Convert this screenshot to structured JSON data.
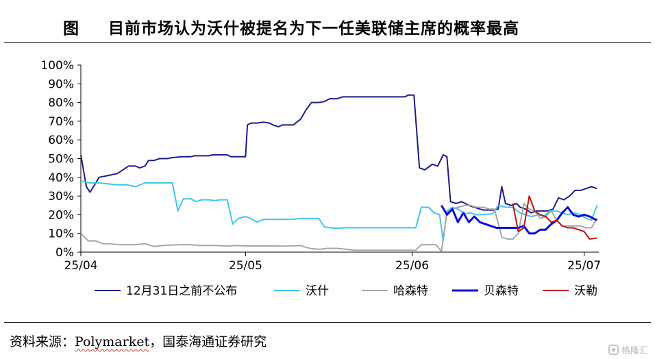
{
  "title": {
    "label": "图",
    "text": "目前市场认为沃什被提名为下一任美联储主席的概率最高"
  },
  "source_prefix": "资料来源：",
  "source_brand": "Polymarket",
  "source_suffix": "，国泰海通证券研究",
  "watermark": {
    "text": "格隆汇",
    "icon": "logo-icon"
  },
  "chart_data": {
    "type": "line",
    "title": "目前市场认为沃什被提名为下一任美联储主席的概率最高",
    "y_unit": "%",
    "ylim": [
      0,
      100
    ],
    "yticks": [
      0,
      10,
      20,
      30,
      40,
      50,
      60,
      70,
      80,
      90,
      100
    ],
    "xlim": [
      0,
      28.3
    ],
    "xticks": [
      {
        "label": "25/04",
        "x": 0
      },
      {
        "label": "25/05",
        "x": 9.0
      },
      {
        "label": "25/06",
        "x": 18.1
      },
      {
        "label": "25/07",
        "x": 27.5
      }
    ],
    "x_note": "x in months-scale units where 0 = 25/04 and tick labels as shown",
    "grid": false,
    "legend_position": "bottom",
    "series": [
      {
        "name": "12月31日之前不公布",
        "color": "#1c1c8c",
        "width": 2,
        "points": [
          [
            0,
            52
          ],
          [
            0.3,
            35
          ],
          [
            0.5,
            32
          ],
          [
            1,
            40
          ],
          [
            1.5,
            41
          ],
          [
            2,
            42
          ],
          [
            2.3,
            44
          ],
          [
            2.6,
            46
          ],
          [
            3,
            46
          ],
          [
            3.2,
            45
          ],
          [
            3.5,
            46
          ],
          [
            3.7,
            49
          ],
          [
            4,
            49
          ],
          [
            4.3,
            50
          ],
          [
            4.7,
            50
          ],
          [
            5,
            50.5
          ],
          [
            5.5,
            51
          ],
          [
            6,
            51
          ],
          [
            6.2,
            51.5
          ],
          [
            6.6,
            51.5
          ],
          [
            7,
            51.5
          ],
          [
            7.2,
            52
          ],
          [
            7.3,
            52
          ],
          [
            7.5,
            52
          ],
          [
            7.8,
            52
          ],
          [
            8,
            52
          ],
          [
            8.2,
            51
          ],
          [
            8.4,
            51
          ],
          [
            8.6,
            51
          ],
          [
            8.8,
            51
          ],
          [
            9.0,
            51
          ],
          [
            9.1,
            68
          ],
          [
            9.3,
            69
          ],
          [
            9.6,
            69
          ],
          [
            10,
            69.5
          ],
          [
            10.3,
            69
          ],
          [
            10.5,
            68
          ],
          [
            10.8,
            67
          ],
          [
            11,
            68
          ],
          [
            11.3,
            68
          ],
          [
            11.6,
            68
          ],
          [
            12,
            71
          ],
          [
            12.3,
            76
          ],
          [
            12.6,
            80
          ],
          [
            13,
            80
          ],
          [
            13.3,
            80.5
          ],
          [
            13.6,
            82
          ],
          [
            14,
            82
          ],
          [
            14.3,
            83
          ],
          [
            14.6,
            83
          ],
          [
            15,
            83
          ],
          [
            15.5,
            83
          ],
          [
            16,
            83
          ],
          [
            16.5,
            83
          ],
          [
            17,
            83
          ],
          [
            17.4,
            83
          ],
          [
            17.7,
            83
          ],
          [
            17.9,
            84
          ],
          [
            18.2,
            84
          ],
          [
            18.5,
            45
          ],
          [
            18.8,
            44
          ],
          [
            19.2,
            47
          ],
          [
            19.5,
            46
          ],
          [
            19.8,
            52
          ],
          [
            20,
            51
          ],
          [
            20.2,
            27
          ],
          [
            20.5,
            26
          ],
          [
            20.8,
            27
          ],
          [
            21,
            26
          ],
          [
            21.2,
            25
          ],
          [
            21.5,
            24
          ],
          [
            21.8,
            23
          ],
          [
            22,
            22.5
          ],
          [
            22.5,
            22.5
          ],
          [
            22.8,
            23
          ],
          [
            23,
            35
          ],
          [
            23.2,
            26
          ],
          [
            23.5,
            25
          ],
          [
            23.8,
            26
          ],
          [
            24,
            24
          ],
          [
            24.3,
            23
          ],
          [
            24.6,
            21
          ],
          [
            24.9,
            22
          ],
          [
            25.2,
            22
          ],
          [
            25.5,
            22
          ],
          [
            25.8,
            23
          ],
          [
            26.1,
            29
          ],
          [
            26.4,
            28
          ],
          [
            26.7,
            30
          ],
          [
            27,
            33
          ],
          [
            27.3,
            33
          ],
          [
            27.6,
            34
          ],
          [
            27.9,
            35
          ],
          [
            28.2,
            34
          ]
        ]
      },
      {
        "name": "沃什",
        "color": "#3ec5ee",
        "width": 2,
        "points": [
          [
            0,
            38
          ],
          [
            0.5,
            37
          ],
          [
            1,
            37
          ],
          [
            1.5,
            36.5
          ],
          [
            2,
            36
          ],
          [
            2.5,
            36
          ],
          [
            3,
            35
          ],
          [
            3.5,
            37
          ],
          [
            4,
            37
          ],
          [
            4.5,
            37
          ],
          [
            5,
            37
          ],
          [
            5.3,
            22
          ],
          [
            5.6,
            28.5
          ],
          [
            6,
            28.5
          ],
          [
            6.3,
            27
          ],
          [
            6.6,
            28
          ],
          [
            7,
            28
          ],
          [
            7.3,
            27.5
          ],
          [
            7.6,
            28
          ],
          [
            8,
            28
          ],
          [
            8.3,
            15
          ],
          [
            8.6,
            18
          ],
          [
            9,
            19
          ],
          [
            9.3,
            18
          ],
          [
            9.6,
            16
          ],
          [
            10,
            17.5
          ],
          [
            10.5,
            17.5
          ],
          [
            11,
            17.5
          ],
          [
            11.5,
            17.5
          ],
          [
            12,
            18
          ],
          [
            12.5,
            18
          ],
          [
            13,
            18
          ],
          [
            13.3,
            13.5
          ],
          [
            13.6,
            13
          ],
          [
            14,
            12.8
          ],
          [
            14.5,
            13
          ],
          [
            15,
            13
          ],
          [
            15.5,
            13
          ],
          [
            16,
            13
          ],
          [
            16.5,
            13
          ],
          [
            17,
            13
          ],
          [
            17.5,
            13
          ],
          [
            18,
            13
          ],
          [
            18.3,
            13
          ],
          [
            18.6,
            24
          ],
          [
            19,
            24
          ],
          [
            19.3,
            21
          ],
          [
            19.6,
            20
          ],
          [
            19.8,
            6
          ],
          [
            20,
            22
          ],
          [
            20.3,
            24
          ],
          [
            20.6,
            23
          ],
          [
            21,
            20.5
          ],
          [
            21.3,
            21
          ],
          [
            21.6,
            20
          ],
          [
            22,
            20
          ],
          [
            22.5,
            20.5
          ],
          [
            22.8,
            25
          ],
          [
            23.2,
            24
          ],
          [
            23.6,
            24
          ],
          [
            24,
            21
          ],
          [
            24.3,
            20
          ],
          [
            24.6,
            19
          ],
          [
            25,
            20
          ],
          [
            25.3,
            19
          ],
          [
            25.6,
            22
          ],
          [
            26,
            22
          ],
          [
            26.3,
            21
          ],
          [
            26.6,
            20
          ],
          [
            27,
            21
          ],
          [
            27.3,
            20
          ],
          [
            27.6,
            18
          ],
          [
            27.9,
            17
          ],
          [
            28.2,
            25
          ]
        ]
      },
      {
        "name": "哈森特",
        "color": "#a6a6a6",
        "width": 2,
        "points": [
          [
            0,
            10
          ],
          [
            0.4,
            6
          ],
          [
            0.8,
            6
          ],
          [
            1.2,
            4.5
          ],
          [
            1.6,
            4.5
          ],
          [
            2,
            4
          ],
          [
            2.5,
            4
          ],
          [
            3,
            4
          ],
          [
            3.5,
            4.5
          ],
          [
            4,
            3
          ],
          [
            4.5,
            3.5
          ],
          [
            5,
            3.8
          ],
          [
            5.5,
            4
          ],
          [
            6,
            4
          ],
          [
            6.5,
            3.5
          ],
          [
            7,
            3.5
          ],
          [
            7.5,
            3.5
          ],
          [
            8,
            3.2
          ],
          [
            8.5,
            3.5
          ],
          [
            9,
            3.3
          ],
          [
            9.5,
            3.3
          ],
          [
            10,
            3.3
          ],
          [
            10.5,
            3.3
          ],
          [
            11,
            3.2
          ],
          [
            11.5,
            3.3
          ],
          [
            12,
            3.5
          ],
          [
            12.5,
            2
          ],
          [
            13,
            1.5
          ],
          [
            13.5,
            2
          ],
          [
            14,
            2
          ],
          [
            14.5,
            1.5
          ],
          [
            15,
            1
          ],
          [
            15.5,
            1
          ],
          [
            16,
            1
          ],
          [
            16.5,
            1
          ],
          [
            17,
            1
          ],
          [
            17.5,
            1
          ],
          [
            18,
            1
          ],
          [
            18.3,
            1
          ],
          [
            18.6,
            4
          ],
          [
            19,
            4
          ],
          [
            19.4,
            4
          ],
          [
            19.7,
            0.5
          ],
          [
            20,
            21
          ],
          [
            20.3,
            23
          ],
          [
            20.6,
            24
          ],
          [
            21,
            25
          ],
          [
            21.3,
            25
          ],
          [
            21.6,
            24
          ],
          [
            22,
            24
          ],
          [
            22.3,
            23
          ],
          [
            22.6,
            23
          ],
          [
            23,
            8
          ],
          [
            23.3,
            7
          ],
          [
            23.6,
            7
          ],
          [
            23.9,
            10
          ],
          [
            24.2,
            26
          ],
          [
            24.5,
            23
          ],
          [
            24.8,
            22
          ],
          [
            25.1,
            18
          ],
          [
            25.4,
            19
          ],
          [
            25.7,
            22
          ],
          [
            26,
            17
          ],
          [
            26.3,
            14
          ],
          [
            26.6,
            14
          ],
          [
            27,
            14
          ],
          [
            27.3,
            14
          ],
          [
            27.6,
            13
          ],
          [
            27.9,
            13
          ],
          [
            28.2,
            18
          ]
        ]
      },
      {
        "name": "贝森特",
        "color": "#0b0bdc",
        "width": 3,
        "points": [
          [
            19.7,
            25
          ],
          [
            20,
            20
          ],
          [
            20.3,
            23
          ],
          [
            20.6,
            16
          ],
          [
            20.9,
            21
          ],
          [
            21.2,
            16
          ],
          [
            21.5,
            19
          ],
          [
            21.8,
            16
          ],
          [
            22.1,
            15
          ],
          [
            22.4,
            14
          ],
          [
            22.7,
            13
          ],
          [
            23,
            13
          ],
          [
            23.3,
            13
          ],
          [
            23.6,
            13
          ],
          [
            23.9,
            13
          ],
          [
            24.2,
            14
          ],
          [
            24.5,
            10
          ],
          [
            24.8,
            10
          ],
          [
            25.1,
            12
          ],
          [
            25.4,
            12
          ],
          [
            25.7,
            15
          ],
          [
            26,
            17
          ],
          [
            26.3,
            21
          ],
          [
            26.6,
            24
          ],
          [
            26.9,
            20
          ],
          [
            27.2,
            19
          ],
          [
            27.5,
            20
          ],
          [
            27.8,
            19
          ],
          [
            28.2,
            17
          ]
        ]
      },
      {
        "name": "沃勒",
        "color": "#bf1111",
        "width": 2,
        "points": [
          [
            23.6,
            26
          ],
          [
            23.9,
            11
          ],
          [
            24.2,
            13
          ],
          [
            24.5,
            30
          ],
          [
            24.8,
            22
          ],
          [
            25.1,
            20
          ],
          [
            25.4,
            19
          ],
          [
            25.7,
            16
          ],
          [
            26,
            17
          ],
          [
            26.3,
            14
          ],
          [
            26.6,
            13
          ],
          [
            26.9,
            13
          ],
          [
            27.2,
            12
          ],
          [
            27.5,
            11
          ],
          [
            27.8,
            7
          ],
          [
            28.2,
            7.5
          ]
        ]
      }
    ]
  }
}
